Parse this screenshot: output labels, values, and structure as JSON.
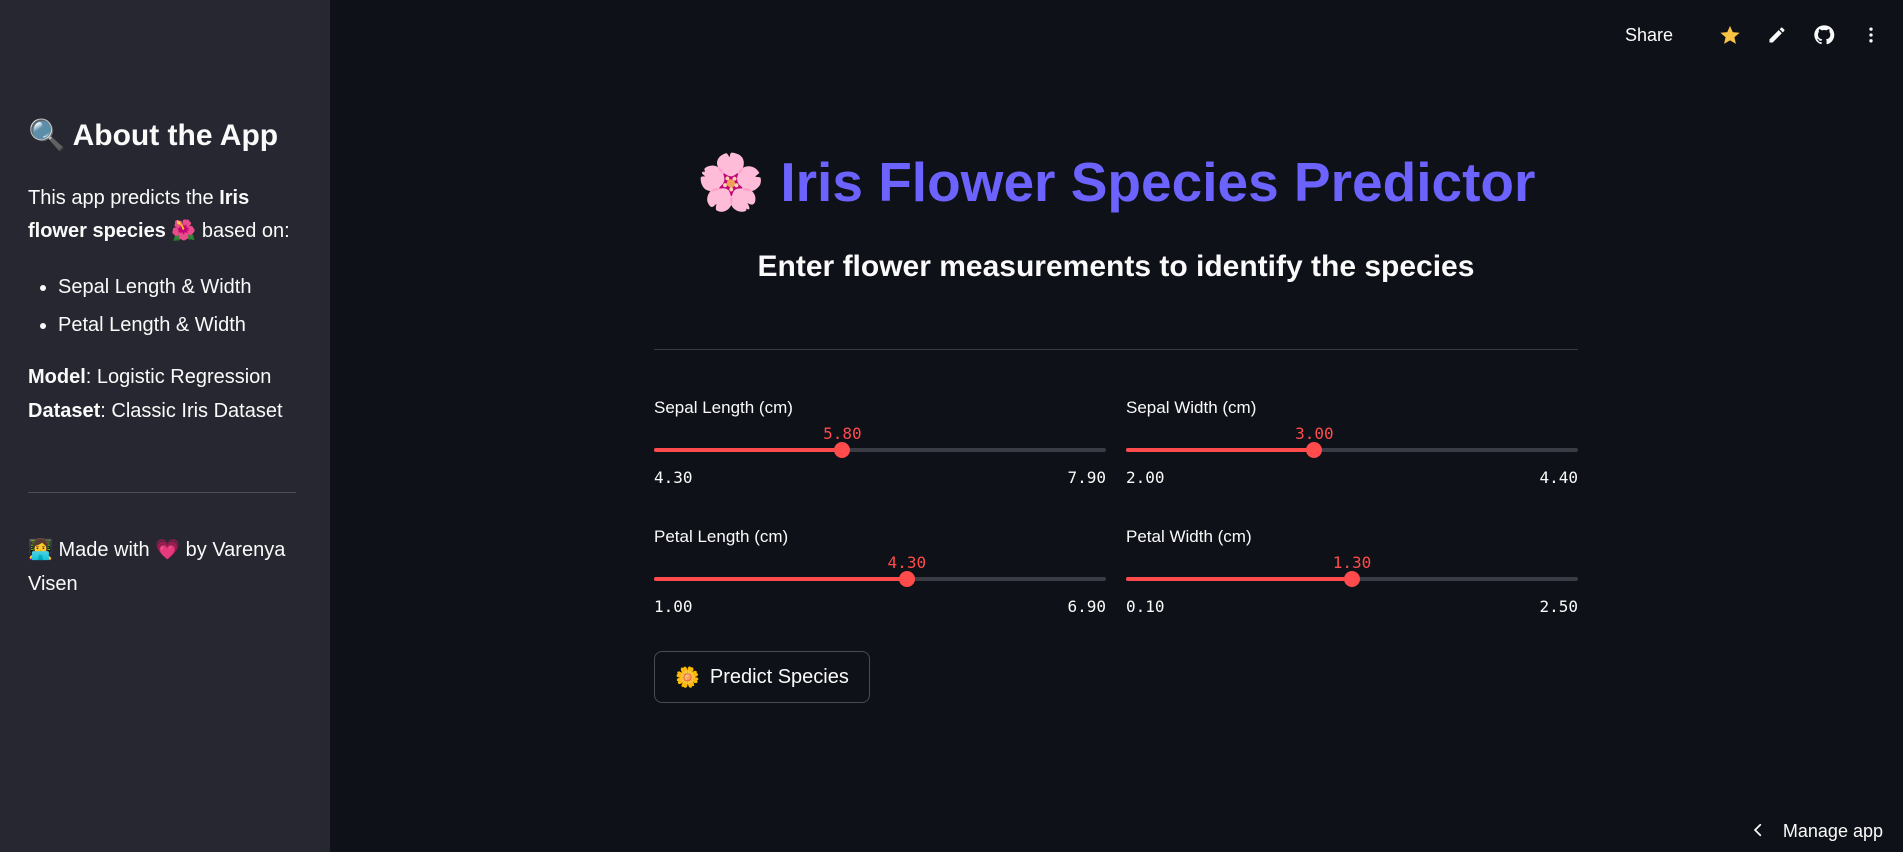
{
  "sidebar": {
    "title_emoji": "🔍",
    "title": "About the App",
    "intro_prefix": "This app predicts the ",
    "intro_bold": "Iris flower species",
    "intro_emoji": "🌺",
    "intro_suffix": " based on:",
    "features": [
      "Sepal Length & Width",
      "Petal Length & Width"
    ],
    "model_label": "Model",
    "model_value": ": Logistic Regression",
    "dataset_label": "Dataset",
    "dataset_value": ": Classic Iris Dataset",
    "footer_emoji": "👩‍💻",
    "footer_prefix": " Made with ",
    "footer_heart": "💗",
    "footer_suffix": " by Varenya Visen"
  },
  "topbar": {
    "share_label": "Share",
    "icons": [
      "star-icon",
      "edit-icon",
      "github-icon",
      "more-vert-icon"
    ],
    "star_color": "#f6c343"
  },
  "main": {
    "title_emoji": "🌸",
    "title": "Iris Flower Species Predictor",
    "subtitle": "Enter flower measurements to identify the species",
    "accent_color": "#6c63ff"
  },
  "sliders": [
    {
      "label": "Sepal Length (cm)",
      "value": "5.80",
      "min": "4.30",
      "max": "7.90"
    },
    {
      "label": "Sepal Width (cm)",
      "value": "3.00",
      "min": "2.00",
      "max": "4.40"
    },
    {
      "label": "Petal Length (cm)",
      "value": "4.30",
      "min": "1.00",
      "max": "6.90"
    },
    {
      "label": "Petal Width (cm)",
      "value": "1.30",
      "min": "0.10",
      "max": "2.50"
    }
  ],
  "slider_color": "#ff4b4b",
  "predict_button": {
    "emoji": "🌼",
    "label": "Predict Species"
  },
  "manage": {
    "label": "Manage app"
  }
}
